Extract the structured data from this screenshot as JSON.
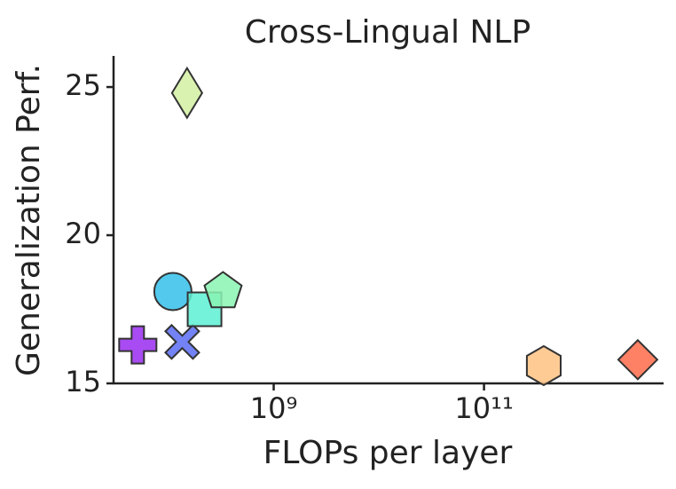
{
  "chart_data": {
    "type": "scatter",
    "title": "Cross-Lingual NLP",
    "x_label": "FLOPs per layer",
    "y_label": "Generalization Perf.",
    "x": [
      51000000,
      110000000,
      135000000,
      150000000,
      220000000,
      330000000,
      370000000000,
      2900000000000
    ],
    "y": [
      16.3,
      18.1,
      16.4,
      24.8,
      17.5,
      18.1,
      15.6,
      15.8
    ],
    "markers": [
      "plus",
      "circle",
      "x",
      "thin_diamond",
      "square",
      "pentagon",
      "hexagon",
      "diamond"
    ],
    "colors": [
      "#9a2cf0",
      "#34c0ea",
      "#5a6cf2",
      "#d2f0a2",
      "#5cf0d4",
      "#8af5b2",
      "#ffc282",
      "#ff6b4a"
    ],
    "xscale": "log",
    "xlim": [
      30000000,
      5100000000000
    ],
    "ylim": [
      15,
      26.05
    ],
    "xticks": [
      {
        "value": 1000000000,
        "label": "10⁹"
      },
      {
        "value": 100000000000,
        "label": "10¹¹"
      }
    ],
    "yticks": [
      15,
      20,
      25
    ],
    "grid": false
  }
}
